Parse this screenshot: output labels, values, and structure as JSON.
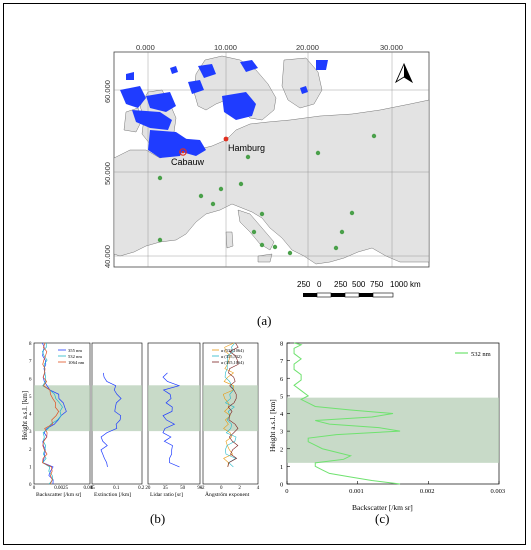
{
  "map": {
    "top_ticks": [
      "0.000",
      "10.000",
      "20.000",
      "30.000"
    ],
    "left_ticks": [
      "60.000",
      "50.000",
      "40.000"
    ],
    "cities": [
      "Hamburg",
      "Cabauw"
    ],
    "scale_labels": [
      "250",
      "0",
      "250",
      "500",
      "750",
      "1000 km"
    ],
    "north_icon": "north-arrow-icon",
    "colors": {
      "land": "#e3e3e3",
      "sea": "#ffffff",
      "clouds": "#1f3cff",
      "station": "#4aa04a",
      "city": "#e03020"
    }
  },
  "captions": {
    "a": "(a)",
    "b": "(b)",
    "c": "(c)"
  },
  "panel_b": {
    "ylabel": "Height a.s.l. [km]",
    "legend": [
      "355 nm",
      "532 nm",
      "1064 nm"
    ],
    "legend_colors": [
      "#1f3cff",
      "#22b8c8",
      "#e05020"
    ],
    "angstrom_legend": [
      "α (532,1064)",
      "α (355,532)",
      "α (355,1064)"
    ],
    "angstrom_colors": [
      "#e89a10",
      "#22b8c8",
      "#7a1f1f"
    ],
    "subplots": [
      {
        "xlabel": "Backscatter [/km sr]",
        "ticks": [
          "0",
          "0.0025",
          "0.005"
        ]
      },
      {
        "xlabel": "Extinction [/km]",
        "ticks": [
          "0",
          "0.1",
          "0.2"
        ]
      },
      {
        "xlabel": "Lidar ratio [sr]",
        "ticks": [
          "20",
          "35",
          "50",
          "90"
        ]
      },
      {
        "xlabel": "Ångström exponent",
        "ticks": [
          "-2",
          "0",
          "2",
          "4"
        ]
      }
    ],
    "yticks": [
      "0",
      "1",
      "2",
      "3",
      "4",
      "5",
      "6",
      "7",
      "8"
    ],
    "shade_km": [
      3.0,
      5.6
    ]
  },
  "chart_data": [
    {
      "type": "line",
      "panel": "c",
      "title": "",
      "xlabel": "Backscatter [/km sr]",
      "ylabel": "Height a.s.l. [km]",
      "xlim": [
        0,
        0.003
      ],
      "ylim": [
        0,
        8
      ],
      "xticks": [
        "0",
        "0.001",
        "0.002",
        "0.003"
      ],
      "yticks": [
        "0",
        "1",
        "2",
        "3",
        "4",
        "5",
        "6",
        "7",
        "8"
      ],
      "shade_km": [
        1.2,
        4.9
      ],
      "series": [
        {
          "name": "532 nm",
          "color": "#6fe26f",
          "x": [
            0.0016,
            0.0012,
            0.0009,
            0.0006,
            0.0005,
            0.0004,
            0.0004,
            0.0008,
            0.0009,
            0.0007,
            0.0005,
            0.0004,
            0.0003,
            0.0003,
            0.0007,
            0.0016,
            0.0013,
            0.0006,
            0.0004,
            0.0012,
            0.0015,
            0.0009,
            0.0004,
            0.0003,
            0.0002,
            0.0003,
            0.0002,
            0.0001,
            0.0002,
            0.0002,
            0.0001,
            0.0001,
            0.0002,
            0.0001,
            0.0001,
            0.0002,
            0.0001
          ],
          "y": [
            0.0,
            0.2,
            0.4,
            0.6,
            0.8,
            1.0,
            1.2,
            1.4,
            1.6,
            1.8,
            2.0,
            2.2,
            2.4,
            2.6,
            2.8,
            3.0,
            3.2,
            3.4,
            3.6,
            3.8,
            4.0,
            4.2,
            4.4,
            4.6,
            4.8,
            5.0,
            5.3,
            5.6,
            5.9,
            6.2,
            6.5,
            6.8,
            7.1,
            7.4,
            7.7,
            7.9,
            8.0
          ]
        }
      ]
    }
  ]
}
